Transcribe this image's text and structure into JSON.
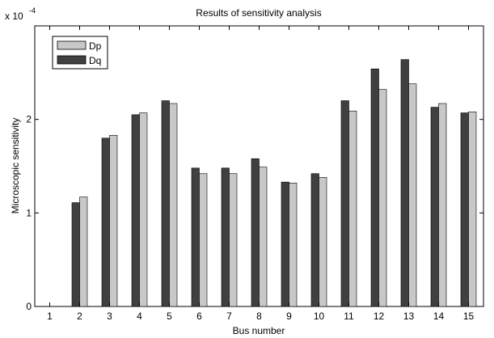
{
  "chart_data": {
    "type": "bar",
    "title": "Results of sensitivity analysis",
    "xlabel": "Bus number",
    "ylabel": "Microscopic sensitivity",
    "y_exponent_label": "x 10",
    "y_exponent_power": "-4",
    "categories": [
      "1",
      "2",
      "3",
      "4",
      "5",
      "6",
      "7",
      "8",
      "9",
      "10",
      "11",
      "12",
      "13",
      "14",
      "15"
    ],
    "ylim": [
      0,
      3
    ],
    "yticks": [
      "0",
      "1",
      "2"
    ],
    "ytick_values": [
      0,
      1,
      2
    ],
    "legend_position": "top-left",
    "series": [
      {
        "name": "Dq",
        "color": "#404040",
        "values": [
          0,
          1.11,
          1.8,
          2.05,
          2.2,
          1.48,
          1.48,
          1.58,
          1.33,
          1.42,
          2.2,
          2.54,
          2.64,
          2.13,
          2.07
        ]
      },
      {
        "name": "Dp",
        "color": "#c8c8c8",
        "values": [
          0,
          1.17,
          1.83,
          2.07,
          2.17,
          1.42,
          1.42,
          1.49,
          1.32,
          1.38,
          2.09,
          2.32,
          2.38,
          2.17,
          2.08
        ]
      }
    ]
  }
}
